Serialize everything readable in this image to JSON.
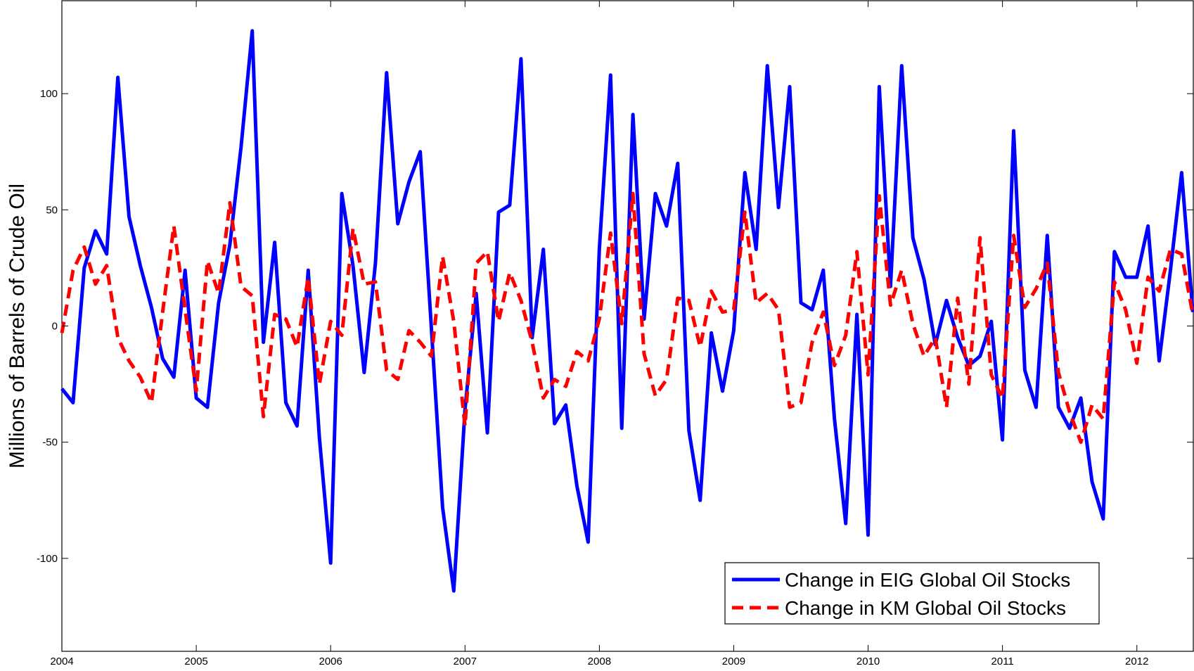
{
  "chart_data": {
    "type": "line",
    "title": "",
    "xlabel": "",
    "ylabel": "Millions of Barrels of Crude Oil",
    "xlim": [
      2004,
      2012.42
    ],
    "ylim": [
      -140,
      140
    ],
    "x_ticks": [
      2004,
      2005,
      2006,
      2007,
      2008,
      2009,
      2010,
      2011,
      2012
    ],
    "x_tick_labels": [
      "2004",
      "2005",
      "2006",
      "2007",
      "2008",
      "2009",
      "2010",
      "2011",
      "2012"
    ],
    "y_ticks": [
      -100,
      -50,
      0,
      50,
      100
    ],
    "y_tick_labels": [
      "-100",
      "-50",
      "0",
      "50",
      "100"
    ],
    "grid": false,
    "legend_position": "bottom-right",
    "x_start": 2004,
    "x_step": 0.08333,
    "series": [
      {
        "name": "Change in EIG Global Oil Stocks",
        "color": "#0000ff",
        "style": "solid",
        "values": [
          -27,
          -33,
          25,
          41,
          31,
          107,
          47,
          26,
          8,
          -14,
          -22,
          24,
          -31,
          -35,
          10,
          35,
          77,
          127,
          -7,
          36,
          -33,
          -43,
          24,
          -48,
          -102,
          57,
          26,
          -20,
          27,
          109,
          44,
          62,
          75,
          -1,
          -78,
          -114,
          -36,
          14,
          -46,
          49,
          52,
          115,
          -5,
          33,
          -42,
          -34,
          -69,
          -93,
          33,
          108,
          -44,
          91,
          3,
          57,
          43,
          70,
          -45,
          -75,
          -3,
          -28,
          -2,
          66,
          33,
          112,
          51,
          103,
          10,
          7,
          24,
          -40,
          -85,
          5,
          -90,
          103,
          17,
          112,
          38,
          20,
          -8,
          11,
          -5,
          -17,
          -13,
          2,
          -49,
          84,
          -19,
          -35,
          39,
          -35,
          -44,
          -31,
          -67,
          -83,
          32,
          21,
          21,
          43,
          -15,
          24,
          66,
          6
        ]
      },
      {
        "name": "Change in KM Global Oil Stocks",
        "color": "#ff0000",
        "style": "dashed",
        "values": [
          -3,
          24,
          34,
          18,
          26,
          -5,
          -15,
          -22,
          -33,
          6,
          43,
          7,
          -28,
          28,
          14,
          53,
          17,
          13,
          -39,
          5,
          3,
          -9,
          21,
          -25,
          2,
          -4,
          42,
          18,
          19,
          -19,
          -23,
          -2,
          -7,
          -13,
          30,
          2,
          -43,
          27,
          32,
          2,
          23,
          11,
          -7,
          -31,
          -23,
          -26,
          -11,
          -15,
          3,
          40,
          1,
          57,
          -12,
          -30,
          -23,
          12,
          11,
          -9,
          15,
          6,
          7,
          49,
          10,
          14,
          7,
          -35,
          -33,
          -7,
          6,
          -17,
          -4,
          32,
          -21,
          56,
          9,
          24,
          1,
          -13,
          -5,
          -35,
          12,
          -25,
          38,
          -21,
          -31,
          39,
          8,
          16,
          27,
          -20,
          -37,
          -50,
          -34,
          -40,
          19,
          7,
          -16,
          21,
          15,
          33,
          31,
          5
        ]
      }
    ]
  }
}
